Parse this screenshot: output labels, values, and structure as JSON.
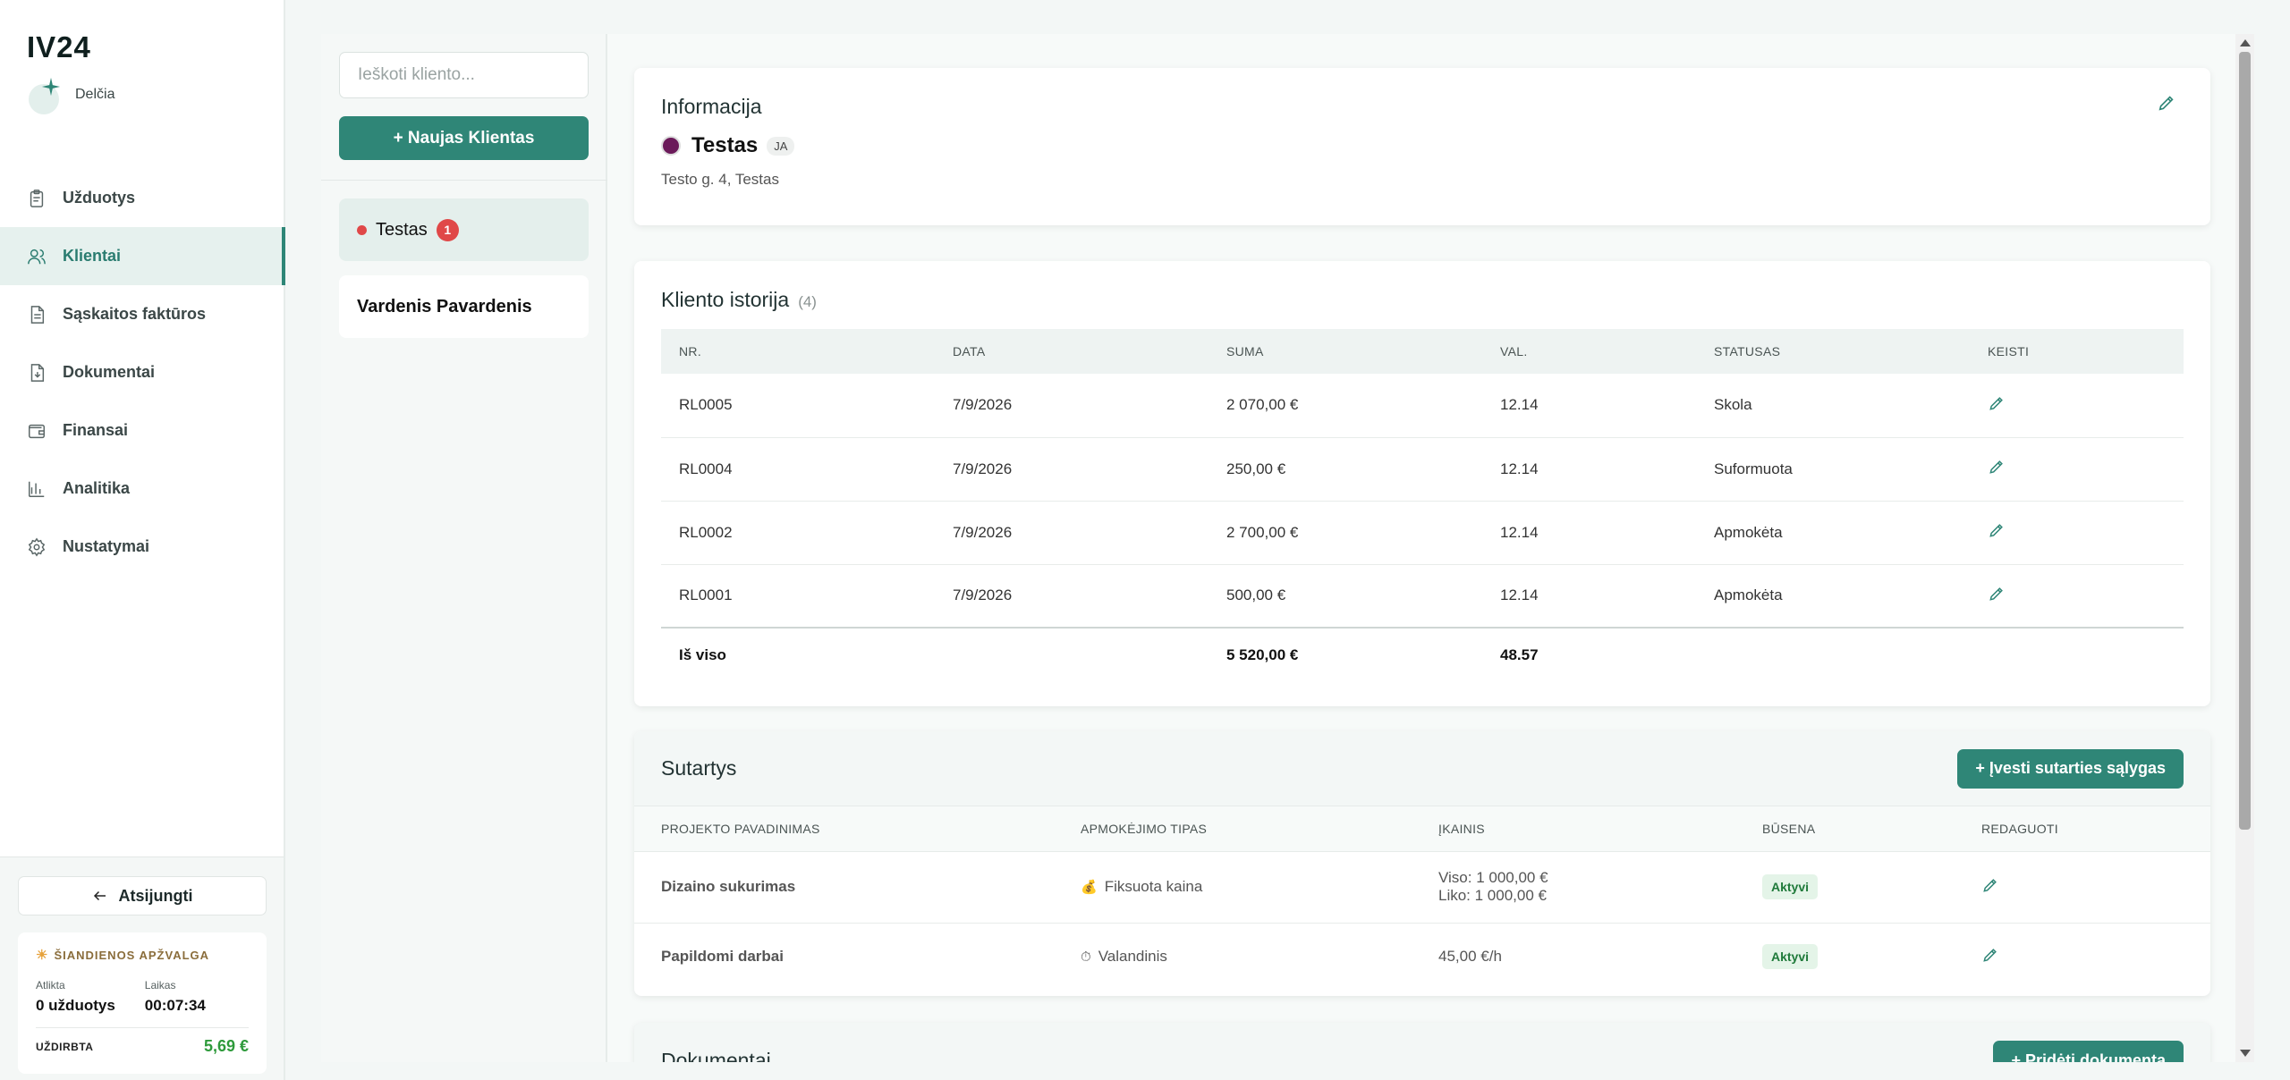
{
  "app": {
    "logo": "IV24",
    "brand_name": "Delčia"
  },
  "nav": [
    {
      "label": "Užduotys",
      "icon": "clipboard-icon"
    },
    {
      "label": "Klientai",
      "icon": "users-icon",
      "active": true
    },
    {
      "label": "Sąskaitos faktūros",
      "icon": "invoice-icon"
    },
    {
      "label": "Dokumentai",
      "icon": "document-icon"
    },
    {
      "label": "Finansai",
      "icon": "wallet-icon"
    },
    {
      "label": "Analitika",
      "icon": "chart-icon"
    },
    {
      "label": "Nustatymai",
      "icon": "gear-icon"
    }
  ],
  "sidebar_bottom": {
    "logout_label": "Atsijungti",
    "today": {
      "title": "ŠIANDIENOS APŽVALGA",
      "done_label": "Atlikta",
      "done_value": "0 užduotys",
      "time_label": "Laikas",
      "time_value": "00:07:34",
      "earned_label": "UŽDIRBTA",
      "earned_value": "5,69 €"
    }
  },
  "clients": {
    "search_placeholder": "Ieškoti kliento...",
    "new_button": "+ Naujas Klientas",
    "items": [
      {
        "name": "Testas",
        "badge": "1",
        "selected": true
      },
      {
        "name": "Vardenis Pavardenis"
      }
    ]
  },
  "info": {
    "title": "Informacija",
    "client_name": "Testas",
    "tag": "JA",
    "address": "Testo g. 4, Testas",
    "color": "#6b1a5a"
  },
  "history": {
    "title": "Kliento istorija",
    "count": "(4)",
    "columns": [
      "NR.",
      "DATA",
      "SUMA",
      "VAL.",
      "STATUSAS",
      "KEISTI"
    ],
    "rows": [
      {
        "nr": "RL0005",
        "date": "7/9/2026",
        "sum": "2 070,00 €",
        "val": "12.14",
        "status": "Skola",
        "status_type": "debt"
      },
      {
        "nr": "RL0004",
        "date": "7/9/2026",
        "sum": "250,00 €",
        "val": "12.14",
        "status": "Suformuota",
        "status_type": "formed"
      },
      {
        "nr": "RL0002",
        "date": "7/9/2026",
        "sum": "2 700,00 €",
        "val": "12.14",
        "status": "Apmokėta",
        "status_type": "paid"
      },
      {
        "nr": "RL0001",
        "date": "7/9/2026",
        "sum": "500,00 €",
        "val": "12.14",
        "status": "Apmokėta",
        "status_type": "paid"
      }
    ],
    "total": {
      "label": "Iš viso",
      "sum": "5 520,00 €",
      "val": "48.57"
    }
  },
  "contracts": {
    "title": "Sutartys",
    "add_button": "+ Įvesti sutarties sąlygas",
    "columns": [
      "PROJEKTO PAVADINIMAS",
      "APMOKĖJIMO TIPAS",
      "ĮKAINIS",
      "BŪSENA",
      "REDAGUOTI"
    ],
    "rows": [
      {
        "name": "Dizaino sukurimas",
        "pay_icon": "💰",
        "pay_type": "Fiksuota kaina",
        "rate_line1": "Viso: 1 000,00 €",
        "rate_line2": "Liko: 1 000,00 €",
        "status": "Aktyvi"
      },
      {
        "name": "Papildomi darbai",
        "pay_icon": "⏱",
        "pay_type": "Valandinis",
        "rate_line1": "45,00 €/h",
        "status": "Aktyvi"
      }
    ]
  },
  "documents": {
    "title": "Dokumentai",
    "add_button": "+ Pridėti dokumentą"
  }
}
